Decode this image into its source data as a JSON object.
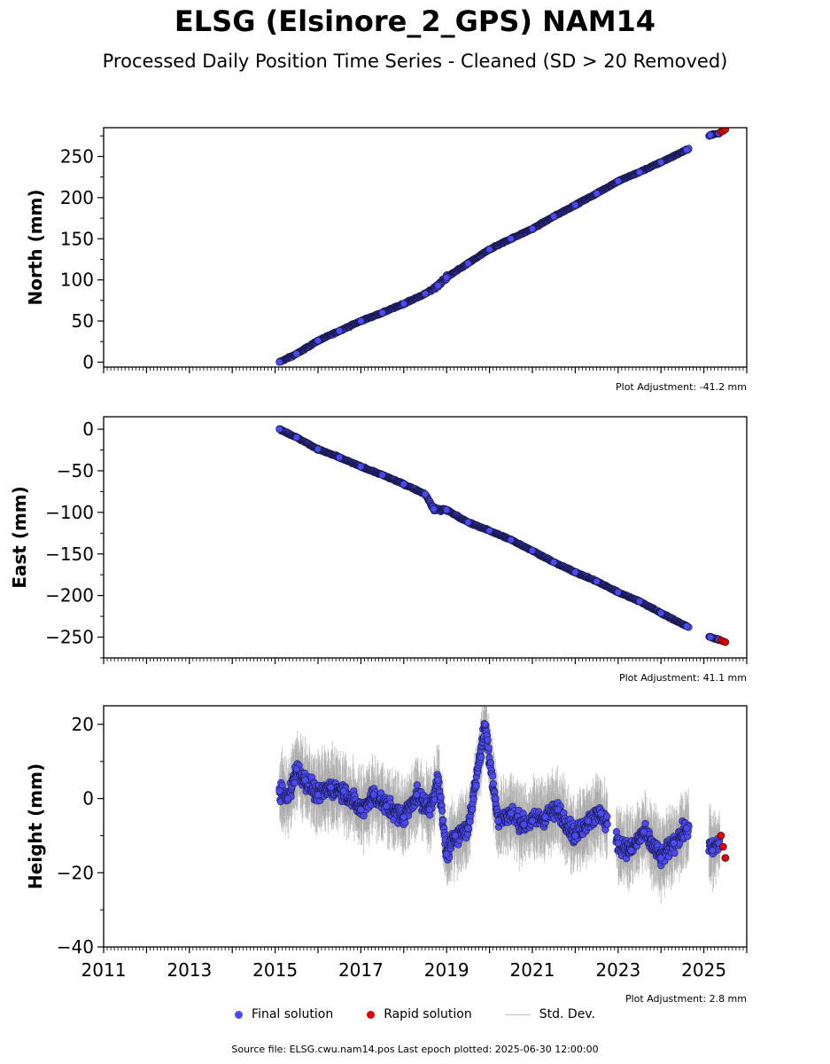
{
  "title": "ELSG (Elsinore_2_GPS) NAM14",
  "subtitle": "Processed Daily Position Time Series - Cleaned (SD > 20 Removed)",
  "legend": {
    "final": "Final solution",
    "rapid": "Rapid solution",
    "std": "Std. Dev."
  },
  "footer": "Source file: ELSG.cwu.nam14.pos  Last epoch plotted: 2025-06-30 12:00:00",
  "colors": {
    "final": "#4a4af0",
    "final_edge": "#1a1a50",
    "rapid": "#e00000",
    "std": "#a0a0a0"
  },
  "chart_data": [
    {
      "type": "scatter",
      "ylabel": "North (mm)",
      "adjustment": "Plot Adjustment: -41.2 mm",
      "xlim": [
        2011,
        2026
      ],
      "ylim": [
        -6,
        285
      ],
      "yticks": [
        0,
        50,
        100,
        150,
        200,
        250
      ],
      "ytick_labels": [
        "0",
        "50",
        "100",
        "150",
        "200",
        "250"
      ],
      "series": [
        {
          "name": "Final solution",
          "x": [
            2015.1,
            2015.5,
            2016.0,
            2016.5,
            2017.0,
            2017.5,
            2018.0,
            2018.5,
            2018.8,
            2019.0,
            2019.5,
            2020.0,
            2020.5,
            2021.0,
            2021.5,
            2022.0,
            2022.5,
            2023.0,
            2023.5,
            2024.0,
            2024.6,
            2025.15,
            2025.35
          ],
          "y": [
            0,
            10,
            26,
            38,
            50,
            60,
            71,
            83,
            93,
            103,
            120,
            137,
            150,
            162,
            177,
            191,
            205,
            220,
            231,
            243,
            258,
            276,
            278
          ]
        },
        {
          "name": "Rapid solution",
          "x": [
            2025.4,
            2025.45,
            2025.5
          ],
          "y": [
            280,
            281,
            283
          ]
        }
      ]
    },
    {
      "type": "scatter",
      "ylabel": "East (mm)",
      "adjustment": "Plot Adjustment: 41.1 mm",
      "xlim": [
        2011,
        2026
      ],
      "ylim": [
        -275,
        15
      ],
      "yticks": [
        0,
        -50,
        -100,
        -150,
        -200,
        -250
      ],
      "ytick_labels": [
        "0",
        "−50",
        "−100",
        "−150",
        "−200",
        "−250"
      ],
      "series": [
        {
          "name": "Final solution",
          "x": [
            2015.1,
            2015.5,
            2016.0,
            2016.5,
            2017.0,
            2017.5,
            2018.0,
            2018.5,
            2018.7,
            2019.0,
            2019.5,
            2020.0,
            2020.5,
            2021.0,
            2021.5,
            2022.0,
            2022.5,
            2023.0,
            2023.5,
            2024.0,
            2024.6,
            2025.15,
            2025.35
          ],
          "y": [
            0,
            -10,
            -24,
            -34,
            -45,
            -55,
            -66,
            -78,
            -96,
            -97,
            -112,
            -122,
            -133,
            -146,
            -160,
            -172,
            -183,
            -196,
            -207,
            -221,
            -237,
            -250,
            -253
          ]
        },
        {
          "name": "Rapid solution",
          "x": [
            2025.4,
            2025.45,
            2025.5
          ],
          "y": [
            -254,
            -255,
            -256
          ]
        }
      ]
    },
    {
      "type": "scatter",
      "ylabel": "Height (mm)",
      "adjustment": "Plot Adjustment: 2.8 mm",
      "xlim": [
        2011,
        2026
      ],
      "ylim": [
        -40,
        25
      ],
      "yticks": [
        20,
        0,
        -20,
        -40
      ],
      "ytick_labels": [
        "20",
        "0",
        "−20",
        "−40"
      ],
      "xticks": [
        2011,
        2013,
        2015,
        2017,
        2019,
        2021,
        2023,
        2025
      ],
      "series": [
        {
          "name": "Final solution",
          "x": [
            2015.1,
            2015.3,
            2015.5,
            2015.7,
            2016.0,
            2016.3,
            2016.6,
            2017.0,
            2017.3,
            2017.6,
            2018.0,
            2018.3,
            2018.6,
            2018.8,
            2019.0,
            2019.2,
            2019.5,
            2019.9,
            2020.2,
            2020.5,
            2020.8,
            2021.0,
            2021.3,
            2021.6,
            2022.0,
            2022.3,
            2022.6,
            2023.0,
            2023.3,
            2023.6,
            2024.0,
            2024.3,
            2024.6,
            2025.2,
            2025.35
          ],
          "y": [
            2,
            0,
            8,
            5,
            1,
            3,
            2,
            -3,
            1,
            -2,
            -5,
            1,
            -3,
            5,
            -15,
            -10,
            -8,
            20,
            -6,
            -4,
            -7,
            -6,
            -5,
            -3,
            -10,
            -6,
            -4,
            -12,
            -14,
            -9,
            -16,
            -12,
            -8,
            -14,
            -12
          ]
        },
        {
          "name": "Rapid solution",
          "x": [
            2025.4,
            2025.45,
            2025.5
          ],
          "y": [
            -10,
            -13,
            -16
          ]
        }
      ]
    }
  ]
}
